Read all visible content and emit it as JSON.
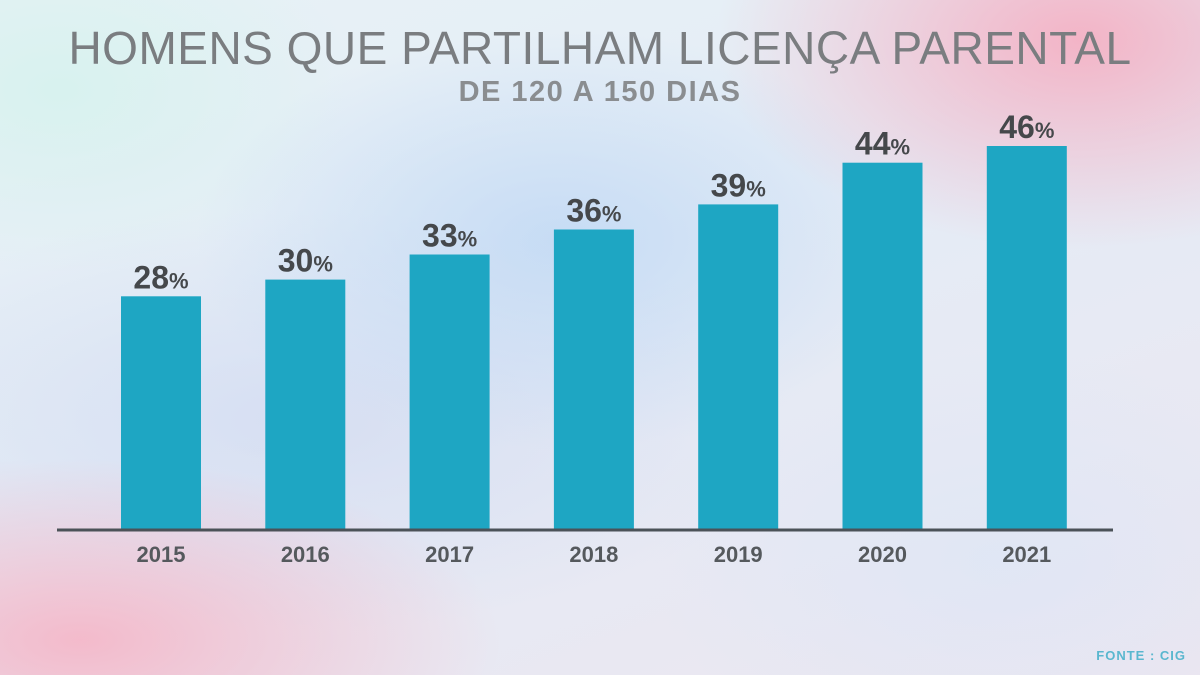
{
  "header": {
    "title": "HOMENS QUE PARTILHAM LICENÇA PARENTAL",
    "subtitle": "DE 120 A 150 DIAS"
  },
  "footer": {
    "source": "FONTE : CIG"
  },
  "colors": {
    "bar": "#1ea6c3",
    "label": "#45484b",
    "axis": "#4b5258"
  },
  "chart_data": {
    "type": "bar",
    "title": "HOMENS QUE PARTILHAM LICENÇA PARENTAL",
    "subtitle": "DE 120 A 150 DIAS",
    "categories": [
      "2015",
      "2016",
      "2017",
      "2018",
      "2019",
      "2020",
      "2021"
    ],
    "values": [
      28,
      30,
      33,
      36,
      39,
      44,
      46
    ],
    "unit": "%",
    "xlabel": "",
    "ylabel": "",
    "ylim": [
      0,
      46
    ],
    "grid": false,
    "legend": "none"
  }
}
